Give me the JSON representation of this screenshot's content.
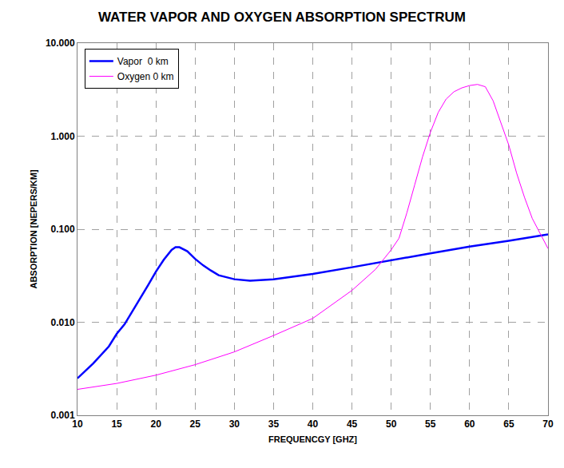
{
  "chart_data": {
    "type": "line",
    "title": "WATER VAPOR AND OXYGEN ABSORPTION SPECTRUM",
    "x_label": "FREQUENCGY [GHZ]",
    "y_label": "ABSORPTION [NEPERS/KM]",
    "log": "y",
    "grid": true,
    "legend": "upper left",
    "xlim": [
      10,
      70
    ],
    "xticks": [
      10,
      15,
      20,
      25,
      30,
      35,
      40,
      45,
      50,
      55,
      60,
      65,
      70
    ],
    "ylim": [
      0.001,
      10
    ],
    "yticks": [
      0.001,
      {
        "value": 0.01,
        "label": "0.010"
      },
      {
        "value": 0.1,
        "label": "0.100"
      },
      {
        "value": 1,
        "label": "1.000"
      },
      {
        "value": 10,
        "label": "10.000"
      }
    ],
    "series": [
      {
        "name": "Vapor  0 km",
        "color": "#0000ff",
        "line_style": "solid",
        "x": [
          10,
          12,
          14,
          15,
          16,
          17,
          18,
          19,
          20,
          21,
          22,
          22.5,
          23,
          24,
          25,
          26,
          27,
          28,
          30,
          32,
          35,
          40,
          45,
          50,
          55,
          60,
          65,
          70
        ],
        "values": [
          0.0025,
          0.0036,
          0.0055,
          0.0075,
          0.0095,
          0.013,
          0.018,
          0.025,
          0.035,
          0.047,
          0.06,
          0.064,
          0.064,
          0.058,
          0.048,
          0.041,
          0.036,
          0.032,
          0.029,
          0.028,
          0.029,
          0.033,
          0.039,
          0.046,
          0.055,
          0.065,
          0.075,
          0.088
        ]
      },
      {
        "name": "Oxygen 0 km",
        "color": "#ff00ff",
        "line_style": "solid",
        "x": [
          10,
          15,
          20,
          25,
          30,
          35,
          40,
          45,
          48,
          50,
          51,
          52,
          53,
          54,
          55,
          56,
          57,
          58,
          59,
          60,
          61,
          62,
          63,
          64,
          65,
          66,
          67,
          68,
          69,
          70
        ],
        "values": [
          0.0019,
          0.0022,
          0.0027,
          0.0035,
          0.0048,
          0.0072,
          0.011,
          0.022,
          0.037,
          0.06,
          0.08,
          0.15,
          0.3,
          0.6,
          1.1,
          1.8,
          2.5,
          3.0,
          3.3,
          3.5,
          3.6,
          3.4,
          2.4,
          1.4,
          0.8,
          0.4,
          0.22,
          0.13,
          0.09,
          0.062
        ]
      }
    ]
  }
}
